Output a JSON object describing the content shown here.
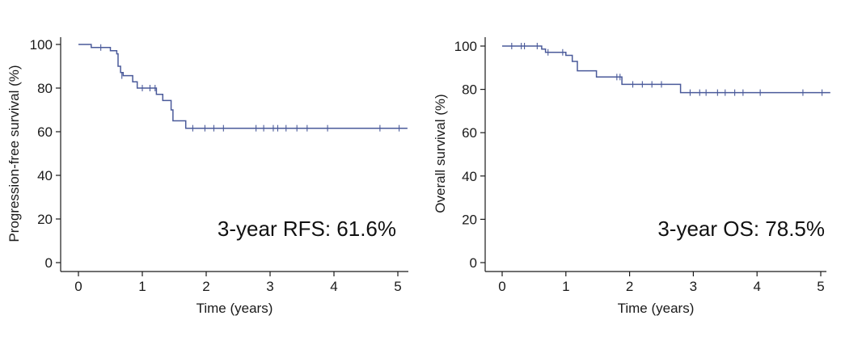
{
  "chart_data": [
    {
      "type": "line",
      "title": "",
      "xlabel": "Time (years)",
      "ylabel": "Progression-free survival (%)",
      "xlim": [
        -0.2,
        5.15
      ],
      "ylim": [
        -3,
        104
      ],
      "xticks": [
        0,
        1,
        2,
        3,
        4,
        5
      ],
      "yticks": [
        0,
        20,
        40,
        60,
        80,
        100
      ],
      "grid": false,
      "color": "#4a5a9a",
      "annotation": "3-year RFS: 61.6%",
      "series": [
        {
          "step": [
            [
              0,
              100
            ],
            [
              0.2,
              100
            ],
            [
              0.2,
              98.6
            ],
            [
              0.5,
              98.6
            ],
            [
              0.5,
              97.1
            ],
            [
              0.6,
              97.1
            ],
            [
              0.6,
              95.7
            ],
            [
              0.62,
              95.7
            ],
            [
              0.62,
              90
            ],
            [
              0.66,
              90
            ],
            [
              0.66,
              87.1
            ],
            [
              0.7,
              87.1
            ],
            [
              0.7,
              85.7
            ],
            [
              0.85,
              85.7
            ],
            [
              0.85,
              82.9
            ],
            [
              0.92,
              82.9
            ],
            [
              0.92,
              80
            ],
            [
              1.22,
              80
            ],
            [
              1.22,
              77.1
            ],
            [
              1.32,
              77.1
            ],
            [
              1.32,
              74.3
            ],
            [
              1.45,
              74.3
            ],
            [
              1.45,
              70
            ],
            [
              1.48,
              70
            ],
            [
              1.48,
              65
            ],
            [
              1.68,
              65
            ],
            [
              1.68,
              61.6
            ],
            [
              5.15,
              61.6
            ]
          ],
          "censors": [
            [
              0.35,
              98.6
            ],
            [
              0.68,
              85.7
            ],
            [
              1.0,
              80
            ],
            [
              1.12,
              80
            ],
            [
              1.2,
              80
            ],
            [
              1.79,
              61.6
            ],
            [
              1.98,
              61.6
            ],
            [
              2.12,
              61.6
            ],
            [
              2.27,
              61.6
            ],
            [
              2.78,
              61.6
            ],
            [
              2.9,
              61.6
            ],
            [
              3.05,
              61.6
            ],
            [
              3.12,
              61.6
            ],
            [
              3.25,
              61.6
            ],
            [
              3.42,
              61.6
            ],
            [
              3.58,
              61.6
            ],
            [
              3.9,
              61.6
            ],
            [
              4.72,
              61.6
            ],
            [
              5.02,
              61.6
            ]
          ]
        }
      ]
    },
    {
      "type": "line",
      "title": "",
      "xlabel": "Time (years)",
      "ylabel": "Overall survival (%)",
      "xlim": [
        -0.2,
        5.15
      ],
      "ylim": [
        -3,
        104
      ],
      "xticks": [
        0,
        1,
        2,
        3,
        4,
        5
      ],
      "yticks": [
        0,
        20,
        40,
        60,
        80,
        100
      ],
      "grid": false,
      "color": "#4a5a9a",
      "annotation": "3-year OS: 78.5%",
      "series": [
        {
          "step": [
            [
              0,
              100
            ],
            [
              0.62,
              100
            ],
            [
              0.62,
              98.6
            ],
            [
              0.68,
              98.6
            ],
            [
              0.68,
              97.1
            ],
            [
              1.0,
              97.1
            ],
            [
              1.0,
              95.7
            ],
            [
              1.1,
              95.7
            ],
            [
              1.1,
              92.9
            ],
            [
              1.18,
              92.9
            ],
            [
              1.18,
              88.6
            ],
            [
              1.48,
              88.6
            ],
            [
              1.48,
              85.7
            ],
            [
              1.88,
              85.7
            ],
            [
              1.88,
              82.3
            ],
            [
              2.8,
              82.3
            ],
            [
              2.8,
              78.5
            ],
            [
              5.15,
              78.5
            ]
          ],
          "censors": [
            [
              0.15,
              100
            ],
            [
              0.3,
              100
            ],
            [
              0.35,
              100
            ],
            [
              0.55,
              100
            ],
            [
              0.72,
              97.1
            ],
            [
              0.95,
              97.1
            ],
            [
              1.8,
              85.7
            ],
            [
              1.85,
              85.7
            ],
            [
              2.05,
              82.3
            ],
            [
              2.2,
              82.3
            ],
            [
              2.35,
              82.3
            ],
            [
              2.5,
              82.3
            ],
            [
              2.95,
              78.5
            ],
            [
              3.1,
              78.5
            ],
            [
              3.2,
              78.5
            ],
            [
              3.38,
              78.5
            ],
            [
              3.5,
              78.5
            ],
            [
              3.65,
              78.5
            ],
            [
              3.78,
              78.5
            ],
            [
              4.05,
              78.5
            ],
            [
              4.72,
              78.5
            ],
            [
              5.02,
              78.5
            ]
          ]
        }
      ]
    }
  ]
}
